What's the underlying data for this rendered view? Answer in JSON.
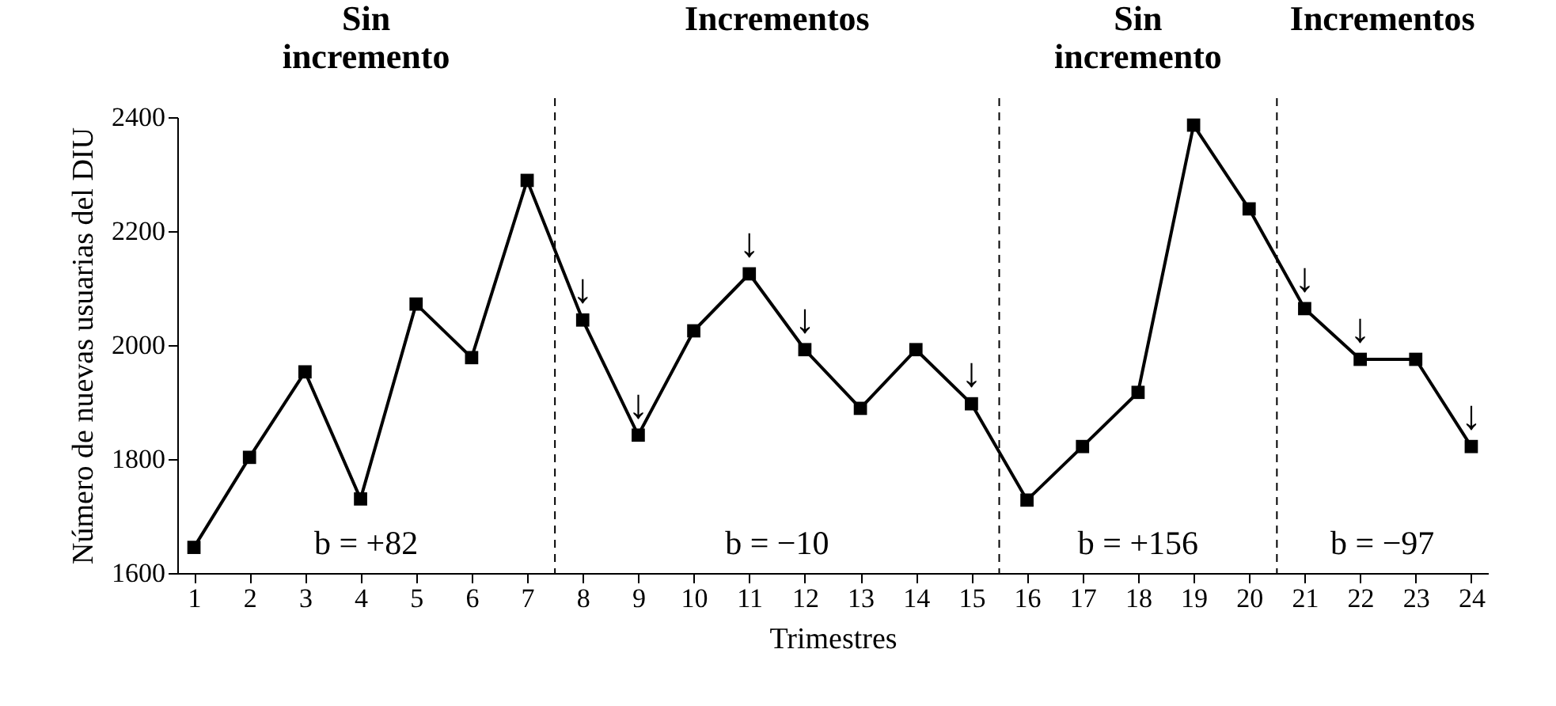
{
  "chart_data": {
    "type": "line",
    "xlabel": "Trimestres",
    "ylabel": "Número de nuevas usuarias del DIU",
    "x": [
      1,
      2,
      3,
      4,
      5,
      6,
      7,
      8,
      9,
      10,
      11,
      12,
      13,
      14,
      15,
      16,
      17,
      18,
      19,
      20,
      21,
      22,
      23,
      24
    ],
    "series": [
      {
        "color": "#000000",
        "values": [
          1645,
          1803,
          1953,
          1730,
          2072,
          1978,
          2289,
          2044,
          1842,
          2025,
          2125,
          1992,
          1889,
          1992,
          1897,
          1728,
          1822,
          1917,
          2386,
          2239,
          2064,
          1975,
          1975,
          1822
        ]
      }
    ],
    "xlim": [
      0.7,
      24.3
    ],
    "xticks": [
      1,
      2,
      3,
      4,
      5,
      6,
      7,
      8,
      9,
      10,
      11,
      12,
      13,
      14,
      15,
      16,
      17,
      18,
      19,
      20,
      21,
      22,
      23,
      24
    ],
    "ylim": [
      1600,
      2400
    ],
    "yticks": [
      1600,
      1800,
      2000,
      2200,
      2400
    ],
    "marker": "square",
    "line_style": "solid",
    "grid": false,
    "ref_lines": [
      {
        "axis": "x",
        "value": 7.5,
        "line_style": "dashed"
      },
      {
        "axis": "x",
        "value": 15.5,
        "line_style": "dashed"
      },
      {
        "axis": "x",
        "value": 20.5,
        "line_style": "dashed"
      }
    ],
    "annotations": [
      "Sin incremento",
      "Incrementos",
      "Sin incremento",
      "Incrementos",
      "b = +82",
      "b = −10",
      "b = +156",
      "b = −97",
      {
        "text": "↓",
        "x": 8,
        "y": 2044
      },
      {
        "text": "↓",
        "x": 9,
        "y": 1842
      },
      {
        "text": "↓",
        "x": 11,
        "y": 2125
      },
      {
        "text": "↓",
        "x": 12,
        "y": 1992
      },
      {
        "text": "↓",
        "x": 15,
        "y": 1897
      },
      {
        "text": "↓",
        "x": 21,
        "y": 2064
      },
      {
        "text": "↓",
        "x": 22,
        "y": 1975
      },
      {
        "text": "↓",
        "x": 24,
        "y": 1822
      }
    ]
  }
}
